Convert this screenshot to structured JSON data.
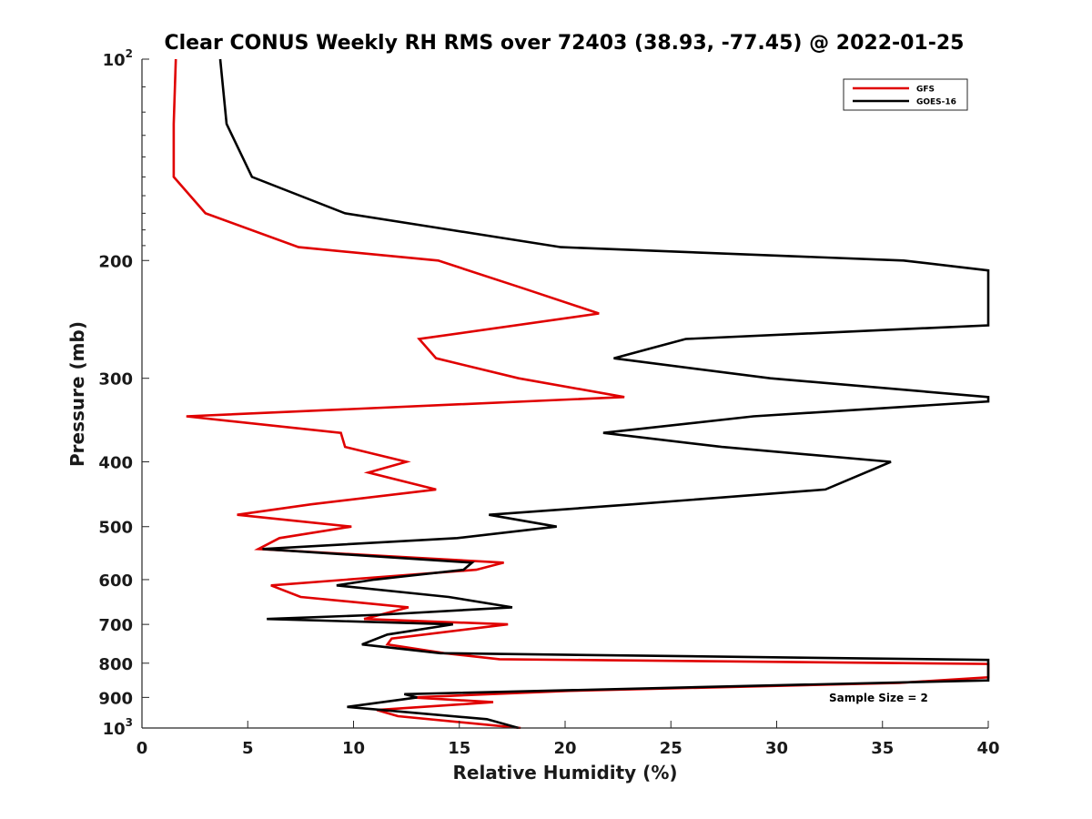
{
  "chart_data": {
    "type": "line",
    "title": "Clear CONUS Weekly RH RMS over 72403 (38.93, -77.45) @ 2022-01-25",
    "xlabel": "Relative Humidity (%)",
    "ylabel": "Pressure (mb)",
    "xlim": [
      0,
      40
    ],
    "ylim": [
      1000,
      100
    ],
    "y_scale": "log",
    "y_reversed": true,
    "grid": false,
    "x_ticks": [
      0,
      5,
      10,
      15,
      20,
      25,
      30,
      35,
      40
    ],
    "y_ticks": [
      {
        "value": 100,
        "base": "10",
        "exp": "2"
      },
      {
        "value": 200,
        "label": "200"
      },
      {
        "value": 300,
        "label": "300"
      },
      {
        "value": 400,
        "label": "400"
      },
      {
        "value": 500,
        "label": "500"
      },
      {
        "value": 600,
        "label": "600"
      },
      {
        "value": 700,
        "label": "700"
      },
      {
        "value": 800,
        "label": "800"
      },
      {
        "value": 900,
        "label": "900"
      },
      {
        "value": 1000,
        "base": "10",
        "exp": "3"
      }
    ],
    "legend_position": "top-right",
    "annotation": "Sample Size = 2",
    "series": [
      {
        "name": "GFS",
        "color": "#e00000",
        "points": [
          [
            1.6,
            100
          ],
          [
            1.5,
            125
          ],
          [
            1.5,
            150
          ],
          [
            3.0,
            170
          ],
          [
            7.4,
            191
          ],
          [
            14.0,
            200
          ],
          [
            18.0,
            220
          ],
          [
            21.6,
            240
          ],
          [
            13.1,
            262
          ],
          [
            13.9,
            280
          ],
          [
            17.8,
            300
          ],
          [
            22.8,
            320
          ],
          [
            2.1,
            342
          ],
          [
            9.4,
            362
          ],
          [
            9.6,
            380
          ],
          [
            12.5,
            400
          ],
          [
            10.7,
            415
          ],
          [
            13.9,
            440
          ],
          [
            8.0,
            463
          ],
          [
            4.5,
            480
          ],
          [
            9.9,
            500
          ],
          [
            6.5,
            520
          ],
          [
            5.5,
            540
          ],
          [
            17.1,
            566
          ],
          [
            15.8,
            580
          ],
          [
            6.1,
            612
          ],
          [
            7.5,
            637
          ],
          [
            12.6,
            660
          ],
          [
            10.5,
            687
          ],
          [
            17.3,
            700
          ],
          [
            11.8,
            735
          ],
          [
            11.6,
            750
          ],
          [
            14.3,
            773
          ],
          [
            16.9,
            789
          ],
          [
            40.0,
            802
          ],
          [
            40.0,
            840
          ],
          [
            35.8,
            856
          ],
          [
            20.2,
            880
          ],
          [
            12.8,
            900
          ],
          [
            16.6,
            915
          ],
          [
            11.1,
            940
          ],
          [
            12.1,
            960
          ],
          [
            17.9,
            1000
          ]
        ]
      },
      {
        "name": "GOES-16",
        "color": "#000000",
        "points": [
          [
            3.7,
            100
          ],
          [
            4.0,
            125
          ],
          [
            5.2,
            150
          ],
          [
            9.6,
            170
          ],
          [
            19.8,
            191
          ],
          [
            36.0,
            200
          ],
          [
            40.0,
            207
          ],
          [
            40.0,
            250
          ],
          [
            25.7,
            262
          ],
          [
            22.3,
            280
          ],
          [
            29.7,
            300
          ],
          [
            40.0,
            320
          ],
          [
            40.0,
            325
          ],
          [
            28.9,
            342
          ],
          [
            21.8,
            362
          ],
          [
            27.4,
            380
          ],
          [
            35.4,
            400
          ],
          [
            32.3,
            440
          ],
          [
            23.2,
            463
          ],
          [
            16.4,
            480
          ],
          [
            19.6,
            500
          ],
          [
            14.9,
            520
          ],
          [
            5.7,
            540
          ],
          [
            15.6,
            566
          ],
          [
            15.2,
            580
          ],
          [
            11.0,
            600
          ],
          [
            9.2,
            612
          ],
          [
            14.5,
            637
          ],
          [
            17.5,
            660
          ],
          [
            11.3,
            677
          ],
          [
            5.9,
            687
          ],
          [
            14.7,
            700
          ],
          [
            11.6,
            725
          ],
          [
            10.4,
            750
          ],
          [
            14.1,
            773
          ],
          [
            40.0,
            791
          ],
          [
            40.0,
            802
          ],
          [
            40.0,
            849
          ],
          [
            28.8,
            865
          ],
          [
            12.4,
            890
          ],
          [
            13.0,
            900
          ],
          [
            9.7,
            930
          ],
          [
            16.3,
            970
          ],
          [
            17.8,
            1000
          ]
        ]
      }
    ]
  }
}
